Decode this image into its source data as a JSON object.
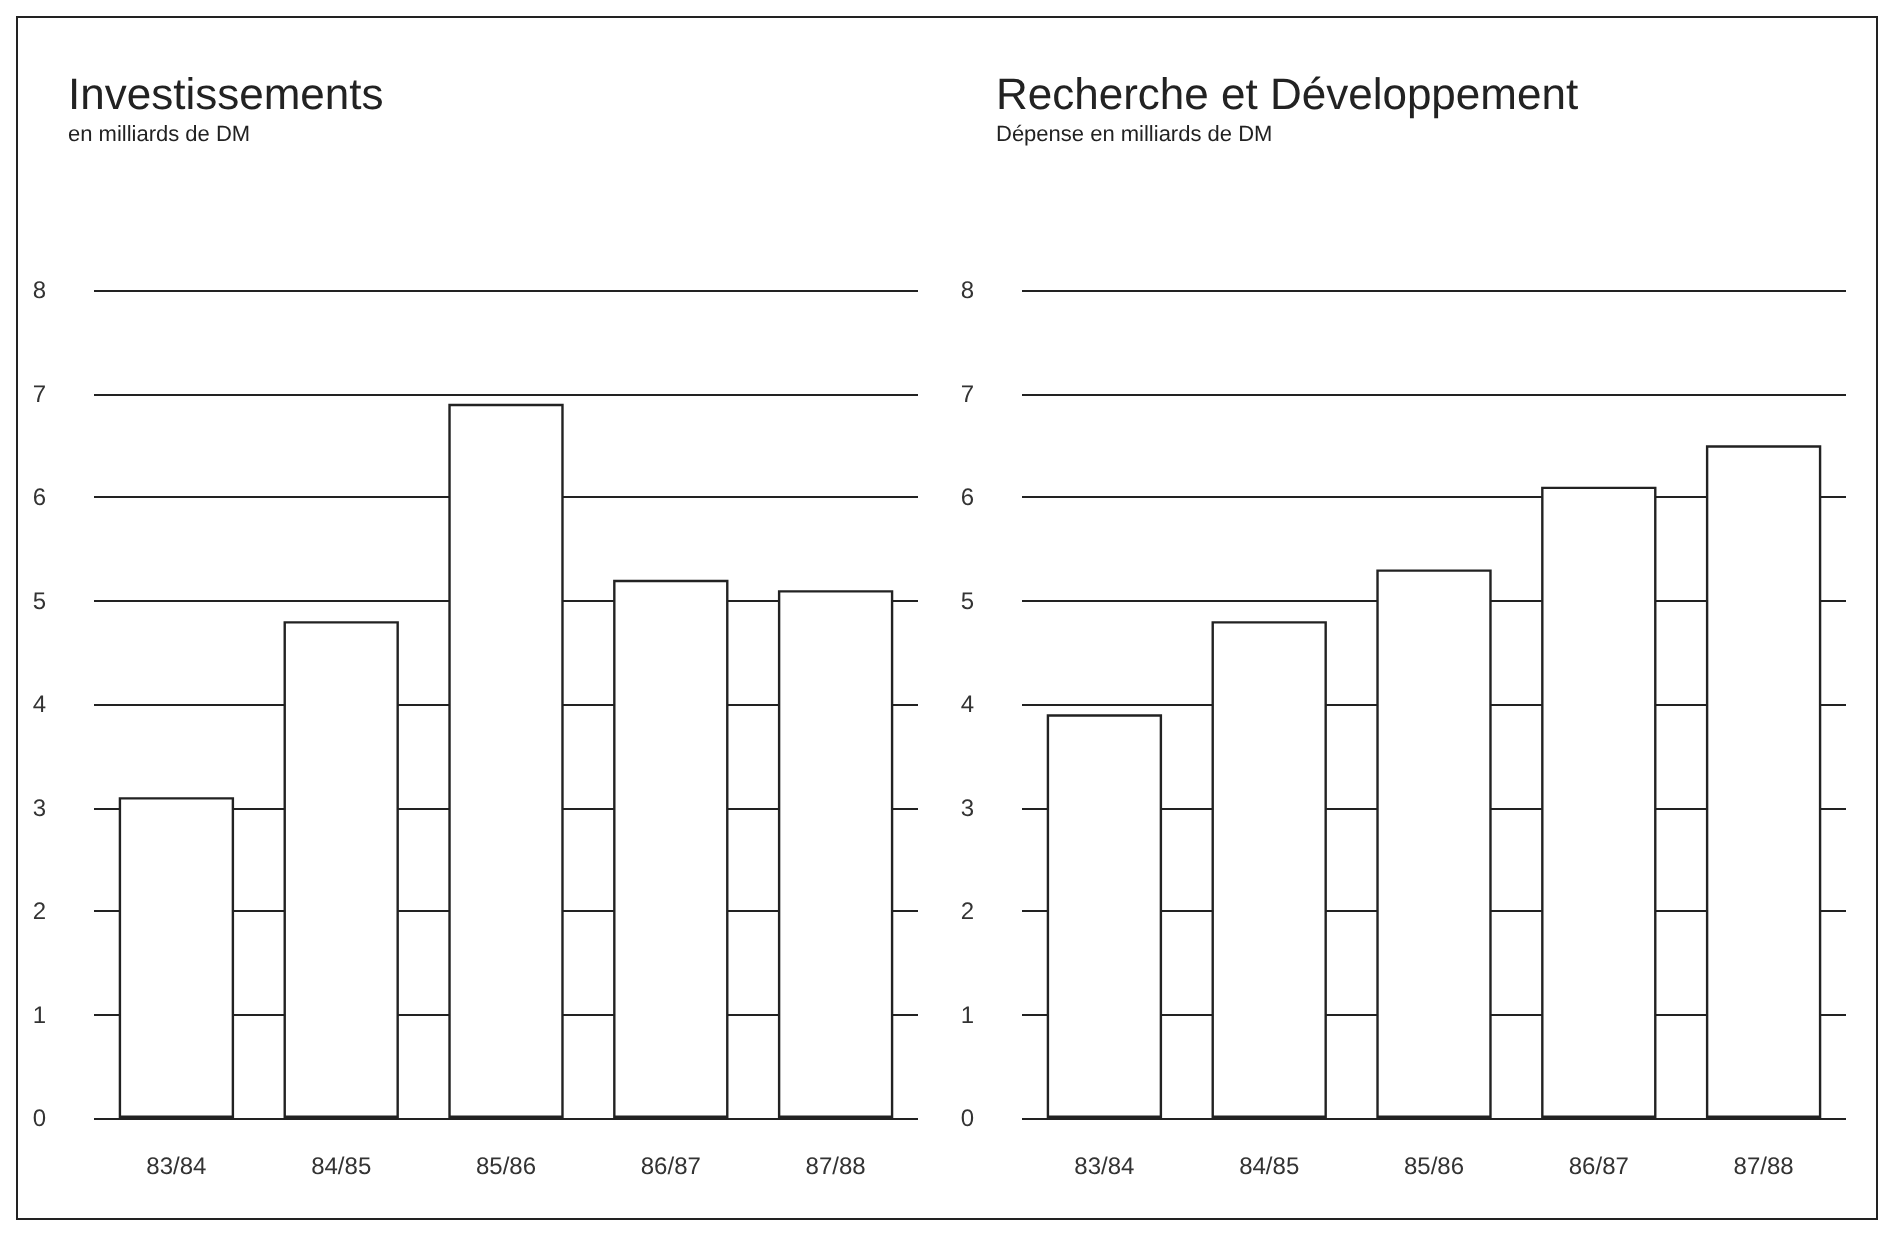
{
  "chart_data": [
    {
      "type": "bar",
      "title": "Investissements",
      "subtitle": "en milliards de DM",
      "categories": [
        "83/84",
        "84/85",
        "85/86",
        "86/87",
        "87/88"
      ],
      "values": [
        3.1,
        4.8,
        6.9,
        5.2,
        5.1
      ],
      "color": "#ffffff",
      "ylim": [
        0,
        8
      ],
      "yticks": [
        0,
        1,
        2,
        3,
        4,
        5,
        6,
        7,
        8
      ],
      "grid": "y"
    },
    {
      "type": "bar",
      "title": "Recherche et Développement",
      "subtitle": "Dépense en milliards de DM",
      "categories": [
        "83/84",
        "84/85",
        "85/86",
        "86/87",
        "87/88"
      ],
      "values": [
        3.9,
        4.8,
        5.3,
        6.1,
        6.5
      ],
      "color": "#ffffff",
      "ylim": [
        0,
        8
      ],
      "yticks": [
        0,
        1,
        2,
        3,
        4,
        5,
        6,
        7,
        8
      ],
      "grid": "y"
    }
  ]
}
